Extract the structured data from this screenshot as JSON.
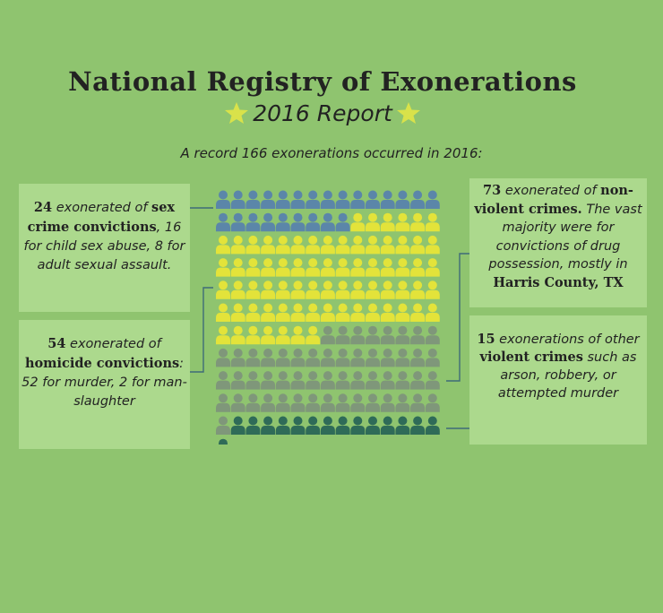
{
  "header": {
    "title": "National Registry of Exonerations",
    "subtitle": "2016 Report",
    "lede": "A record 166 exonerations occurred in 2016:"
  },
  "colors": {
    "background": "#8fc46f",
    "box": "#acd98d",
    "star": "#d9e24a",
    "sex_crime": "#5b86a9",
    "non_violent": "#e3e33a",
    "homicide": "#7f977a",
    "violent": "#2f6b58"
  },
  "counts": {
    "sex_crime": 24,
    "non_violent": 73,
    "homicide": 54,
    "violent": 15,
    "total": 166
  },
  "boxes": {
    "sex_crime": {
      "num": "24",
      "t1": " exonerated of ",
      "b1": "sex crime convictions",
      "t2": ", 16 for child sex abuse, 8 for adult sexual assault."
    },
    "homicide": {
      "num": "54",
      "t1": " exonerated of ",
      "b1": "homicide convictions",
      "t2": ": 52 for murder, 2 for man-slaughter"
    },
    "non_violent": {
      "num": "73",
      "t1": " exonerated of ",
      "b1": "non-violent crimes.",
      "t2": " The vast majority were for convictions of drug possession, mostly in ",
      "b2": "Harris County, TX"
    },
    "violent": {
      "num": "15",
      "t1": " exonerations of other ",
      "b1": "violent crimes",
      "t2": " such as arson, robbery, or attempted murder"
    }
  }
}
